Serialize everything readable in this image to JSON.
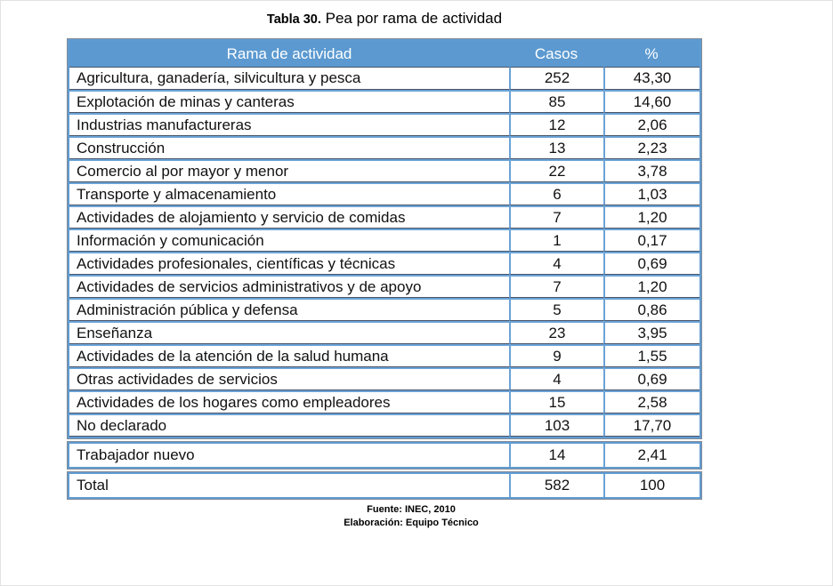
{
  "page": {
    "title_prefix": "Tabla 30.",
    "title_text": " Pea por rama de actividad"
  },
  "table": {
    "headers": {
      "rama": "Rama de actividad",
      "casos": "Casos",
      "pct": "%"
    },
    "rows": [
      {
        "label": "Agricultura, ganadería, silvicultura y pesca",
        "casos": "252",
        "pct": "43,30"
      },
      {
        "label": "Explotación de minas y canteras",
        "casos": "85",
        "pct": "14,60"
      },
      {
        "label": "Industrias manufactureras",
        "casos": "12",
        "pct": "2,06"
      },
      {
        "label": "Construcción",
        "casos": "13",
        "pct": "2,23"
      },
      {
        "label": "Comercio al por mayor y menor",
        "casos": "22",
        "pct": "3,78"
      },
      {
        "label": "Transporte y almacenamiento",
        "casos": "6",
        "pct": "1,03"
      },
      {
        "label": "Actividades de alojamiento y servicio de comidas",
        "casos": "7",
        "pct": "1,20"
      },
      {
        "label": "Información y comunicación",
        "casos": "1",
        "pct": "0,17"
      },
      {
        "label": "Actividades profesionales, científicas y técnicas",
        "casos": "4",
        "pct": "0,69"
      },
      {
        "label": "Actividades de servicios administrativos y de apoyo",
        "casos": "7",
        "pct": "1,20"
      },
      {
        "label": "Administración pública y defensa",
        "casos": "5",
        "pct": "0,86"
      },
      {
        "label": "Enseñanza",
        "casos": "23",
        "pct": "3,95"
      },
      {
        "label": "Actividades de la atención de la salud humana",
        "casos": "9",
        "pct": "1,55"
      },
      {
        "label": "Otras actividades de servicios",
        "casos": "4",
        "pct": "0,69"
      },
      {
        "label": "Actividades de los hogares como empleadores",
        "casos": "15",
        "pct": "2,58"
      },
      {
        "label": "No declarado",
        "casos": "103",
        "pct": "17,70"
      }
    ],
    "trabajador_nuevo": {
      "label": "Trabajador nuevo",
      "casos": "14",
      "pct": "2,41"
    },
    "total": {
      "label": "Total",
      "casos": "582",
      "pct": "100"
    }
  },
  "footer": {
    "fuente": "Fuente: INEC, 2010",
    "elaboracion": "Elaboración: Equipo Técnico"
  },
  "colors": {
    "header_bg": "#5B99D0",
    "border_blue": "#6BA3D6",
    "hairline": "#4A5568"
  }
}
